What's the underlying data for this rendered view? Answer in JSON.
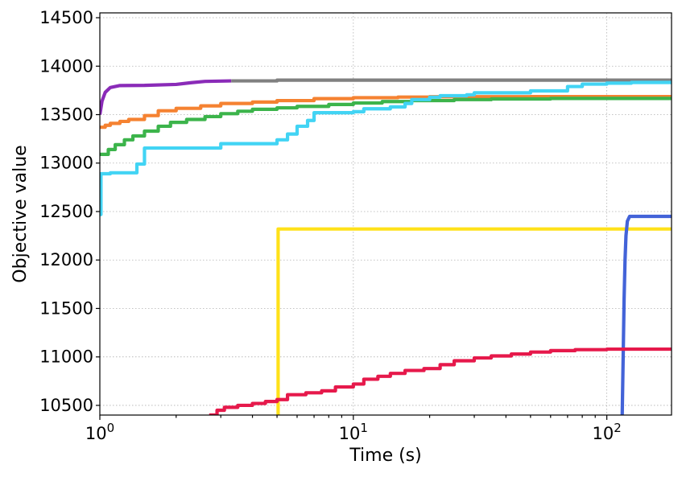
{
  "chart_data": {
    "type": "line",
    "xlabel": "Time (s)",
    "ylabel": "Objective value",
    "xscale": "log",
    "xlim": [
      1,
      180
    ],
    "ylim": [
      10400,
      14550
    ],
    "grid": true,
    "x_ticks": [
      {
        "value": 1,
        "base": "10",
        "exp": "0"
      },
      {
        "value": 10,
        "base": "10",
        "exp": "1"
      },
      {
        "value": 100,
        "base": "10",
        "exp": "2"
      }
    ],
    "y_ticks": [
      {
        "value": 10500,
        "label": "10500"
      },
      {
        "value": 11000,
        "label": "11000"
      },
      {
        "value": 11500,
        "label": "11500"
      },
      {
        "value": 12000,
        "label": "12000"
      },
      {
        "value": 12500,
        "label": "12500"
      },
      {
        "value": 13000,
        "label": "13000"
      },
      {
        "value": 13500,
        "label": "13500"
      },
      {
        "value": 14000,
        "label": "14000"
      },
      {
        "value": 14500,
        "label": "14500"
      }
    ],
    "series": [
      {
        "id": "purple",
        "color": "#8a2bb8",
        "step": false,
        "points": [
          [
            1.0,
            13500
          ],
          [
            1.02,
            13640
          ],
          [
            1.05,
            13730
          ],
          [
            1.1,
            13780
          ],
          [
            1.2,
            13800
          ],
          [
            1.5,
            13802
          ],
          [
            2.0,
            13812
          ],
          [
            2.3,
            13830
          ],
          [
            2.6,
            13843
          ],
          [
            3.3,
            13848
          ]
        ]
      },
      {
        "id": "gray",
        "color": "#808080",
        "step": true,
        "points": [
          [
            3.3,
            13848
          ],
          [
            5.0,
            13856
          ],
          [
            180,
            13856
          ]
        ]
      },
      {
        "id": "orange",
        "color": "#f58231",
        "step": true,
        "points": [
          [
            1.0,
            13370
          ],
          [
            1.05,
            13390
          ],
          [
            1.1,
            13410
          ],
          [
            1.2,
            13430
          ],
          [
            1.3,
            13450
          ],
          [
            1.5,
            13490
          ],
          [
            1.7,
            13540
          ],
          [
            2.0,
            13565
          ],
          [
            2.5,
            13590
          ],
          [
            3.0,
            13615
          ],
          [
            4.0,
            13630
          ],
          [
            5.0,
            13645
          ],
          [
            7.0,
            13665
          ],
          [
            10.0,
            13675
          ],
          [
            15.0,
            13681
          ],
          [
            20.0,
            13685
          ],
          [
            50.0,
            13686
          ],
          [
            180,
            13686
          ]
        ]
      },
      {
        "id": "green",
        "color": "#3cb44b",
        "step": true,
        "points": [
          [
            1.0,
            13090
          ],
          [
            1.08,
            13140
          ],
          [
            1.15,
            13190
          ],
          [
            1.25,
            13240
          ],
          [
            1.35,
            13280
          ],
          [
            1.5,
            13330
          ],
          [
            1.7,
            13380
          ],
          [
            1.9,
            13420
          ],
          [
            2.2,
            13450
          ],
          [
            2.6,
            13480
          ],
          [
            3.0,
            13510
          ],
          [
            3.5,
            13535
          ],
          [
            4.0,
            13555
          ],
          [
            5.0,
            13570
          ],
          [
            6.0,
            13585
          ],
          [
            8.0,
            13605
          ],
          [
            10.0,
            13620
          ],
          [
            13.0,
            13635
          ],
          [
            17.0,
            13645
          ],
          [
            25.0,
            13655
          ],
          [
            35.0,
            13662
          ],
          [
            60.0,
            13667
          ],
          [
            180,
            13668
          ]
        ]
      },
      {
        "id": "cyan",
        "color": "#42d4f4",
        "step": true,
        "points": [
          [
            1.0,
            12470
          ],
          [
            1.01,
            12890
          ],
          [
            1.1,
            12900
          ],
          [
            1.4,
            12990
          ],
          [
            1.5,
            13155
          ],
          [
            3.0,
            13200
          ],
          [
            5.0,
            13240
          ],
          [
            5.5,
            13300
          ],
          [
            6.0,
            13380
          ],
          [
            6.6,
            13440
          ],
          [
            7.0,
            13520
          ],
          [
            10.0,
            13530
          ],
          [
            11.0,
            13560
          ],
          [
            14.0,
            13580
          ],
          [
            16.0,
            13615
          ],
          [
            17.0,
            13655
          ],
          [
            20.0,
            13680
          ],
          [
            22.0,
            13695
          ],
          [
            28.0,
            13705
          ],
          [
            30.0,
            13725
          ],
          [
            50.0,
            13745
          ],
          [
            70.0,
            13790
          ],
          [
            80.0,
            13815
          ],
          [
            100.0,
            13825
          ],
          [
            125.0,
            13832
          ],
          [
            180,
            13840
          ]
        ]
      },
      {
        "id": "yellow",
        "color": "#ffe119",
        "step": true,
        "points": [
          [
            5.05,
            10400
          ],
          [
            5.05,
            12320
          ],
          [
            180,
            12320
          ]
        ]
      },
      {
        "id": "blue",
        "color": "#4363d8",
        "step": false,
        "points": [
          [
            115.0,
            10400
          ],
          [
            116.0,
            11000
          ],
          [
            117.0,
            11600
          ],
          [
            118.0,
            12000
          ],
          [
            119.0,
            12250
          ],
          [
            120.5,
            12400
          ],
          [
            123.0,
            12450
          ],
          [
            180,
            12450
          ]
        ]
      },
      {
        "id": "red",
        "color": "#e6194b",
        "step": true,
        "points": [
          [
            2.7,
            10400
          ],
          [
            2.9,
            10450
          ],
          [
            3.1,
            10480
          ],
          [
            3.5,
            10500
          ],
          [
            4.0,
            10520
          ],
          [
            4.5,
            10540
          ],
          [
            5.0,
            10560
          ],
          [
            5.5,
            10610
          ],
          [
            6.5,
            10630
          ],
          [
            7.5,
            10650
          ],
          [
            8.5,
            10690
          ],
          [
            10.0,
            10720
          ],
          [
            11.0,
            10770
          ],
          [
            12.5,
            10800
          ],
          [
            14.0,
            10830
          ],
          [
            16.0,
            10860
          ],
          [
            19.0,
            10880
          ],
          [
            22.0,
            10920
          ],
          [
            25.0,
            10960
          ],
          [
            30.0,
            10990
          ],
          [
            35.0,
            11010
          ],
          [
            42.0,
            11030
          ],
          [
            50.0,
            11050
          ],
          [
            60.0,
            11065
          ],
          [
            75.0,
            11075
          ],
          [
            100.0,
            11080
          ],
          [
            180,
            11082
          ]
        ]
      }
    ]
  }
}
